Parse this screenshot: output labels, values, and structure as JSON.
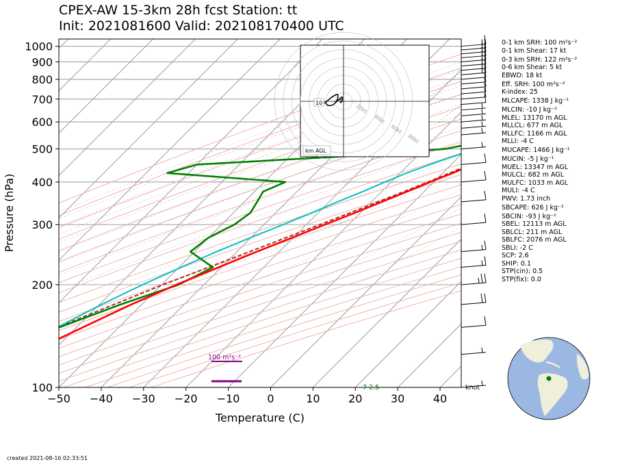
{
  "title_line1": "CPEX-AW 15-3km  28h fcst  Station: tt",
  "title_line2": "Init: 2021081600  Valid: 202108170400 UTC",
  "created": "created 2021-08-16 02:33:51",
  "indices": [
    "0-1 km SRH: 100 m²s⁻²",
    "0-1 km Shear: 17 kt",
    "0-3 km SRH: 122 m²s⁻²",
    "0-6 km Shear: 5 kt",
    "EBWD: 18 kt",
    "Eff. SRH: 100 m²s⁻²",
    "K-index: 25",
    "MLCAPE: 1338 J kg⁻¹",
    "MLCIN: -10 J kg⁻¹",
    "MLEL: 13170 m AGL",
    "MLLCL: 677 m AGL",
    "MLLFC: 1166 m AGL",
    "MLLI: -4 C",
    "MUCAPE: 1466 J kg⁻¹",
    "MUCIN: -5 J kg⁻¹",
    "MUEL: 13347 m AGL",
    "MULCL: 682 m AGL",
    "MULFC: 1033 m AGL",
    "MULI: -4 C",
    "PWV: 1.73 inch",
    "SBCAPE: 626 J kg⁻¹",
    "SBCIN: -93 J kg⁻¹",
    "SBEL: 12113 m AGL",
    "SBLCL: 211 m AGL",
    "SBLFC: 2076 m AGL",
    "SBLI: -2 C",
    "SCP: 2.6",
    "SHIP: 0.1",
    "STP(cin): 0.5",
    "STP(fix): 0.0"
  ],
  "srh_label": "100 m²s⁻²",
  "surface_td_label": "7 2.5",
  "barb_unit": "knot",
  "hodograph": {
    "rings": [
      "20kt",
      "40kt",
      "60kt",
      "80kt"
    ],
    "labels": [
      "10",
      "6"
    ],
    "legend": "km AGL"
  },
  "colors": {
    "temperature": "#ff0000",
    "dewpoint": "#008000",
    "parcel": "#a52a2a",
    "wetbulb": "#00bfbf",
    "srh_bar": "#800080"
  },
  "chart_data": {
    "type": "skew-t",
    "xlabel": "Temperature (C)",
    "ylabel": "Pressure (hPa)",
    "xlim": [
      -50,
      45
    ],
    "ylim": [
      1050,
      100
    ],
    "x_ticks": [
      -50,
      -40,
      -30,
      -20,
      -10,
      0,
      10,
      20,
      30,
      40
    ],
    "y_ticks": [
      1000,
      900,
      800,
      700,
      600,
      500,
      400,
      300,
      200,
      100
    ],
    "series": [
      {
        "key": "temperature",
        "p": [
          1025,
          1000,
          970,
          950,
          925,
          900,
          875,
          850,
          825,
          800,
          775,
          750,
          725,
          700,
          675,
          650,
          625,
          600,
          575,
          550,
          525,
          500,
          475,
          450,
          425,
          400,
          375,
          350,
          325,
          300,
          275,
          250,
          225,
          200,
          175,
          150,
          125,
          100
        ],
        "t": [
          26,
          26.3,
          24.5,
          23.1,
          21.6,
          20.2,
          18.9,
          17.8,
          16.5,
          15.3,
          14.2,
          13.0,
          12.1,
          10.5,
          10.6,
          9.2,
          7.3,
          5.7,
          5.1,
          3.3,
          1.5,
          -0.8,
          -2.5,
          -4.9,
          -7.6,
          -10.8,
          -14.0,
          -17.5,
          -21.3,
          -25.6,
          -30.2,
          -35.3,
          -40.6,
          -46.5,
          -52.5,
          -58.5,
          -65.5,
          -74.0
        ]
      },
      {
        "key": "dewpoint",
        "p": [
          1025,
          1000,
          970,
          950,
          925,
          900,
          875,
          850,
          825,
          800,
          775,
          750,
          725,
          700,
          675,
          650,
          625,
          600,
          575,
          550,
          525,
          500,
          475,
          450,
          425,
          400,
          375,
          350,
          325,
          300,
          275,
          250,
          225,
          200,
          175,
          150,
          125,
          100
        ],
        "td": [
          21.5,
          21.5,
          21.0,
          19.5,
          17.0,
          15.5,
          13.3,
          12.5,
          11.3,
          9.0,
          8.0,
          7.0,
          4.8,
          -2.0,
          1.7,
          -4.5,
          -4.0,
          -6.0,
          -13.5,
          -6.0,
          -8.5,
          -15,
          -38,
          -70,
          -75,
          -45,
          -48,
          -47,
          -46,
          -47,
          -50,
          -51,
          -42,
          -46,
          -55,
          -64,
          -70,
          -74
        ]
      },
      {
        "key": "wetbulb",
        "p": [
          1025,
          1000,
          970,
          950,
          925,
          900,
          875,
          850,
          825,
          800,
          775,
          750,
          725,
          700,
          675,
          650,
          625,
          600,
          575,
          550,
          525,
          500,
          475,
          450,
          425,
          400,
          375,
          350,
          325,
          300,
          275,
          250,
          225,
          200,
          175,
          150,
          125,
          100
        ],
        "tw": [
          22.8,
          22.8,
          22.1,
          21.0,
          19.0,
          17.4,
          15.5,
          14.1,
          12.8,
          11.3,
          10.3,
          8.7,
          6.6,
          3.8,
          3.4,
          1.1,
          -0.4,
          -2.1,
          -3.9,
          -3.0,
          -5.0,
          -7.8,
          -11.5,
          -15.0,
          -18.5,
          -21.5,
          -24.5,
          -28.0,
          -31.5,
          -35.5,
          -40.0,
          -44.8,
          -49.5,
          -54.5,
          -59.5,
          -64.5,
          -70.0,
          -75.5
        ]
      },
      {
        "key": "parcel",
        "p": [
          1000,
          975,
          950,
          925,
          900,
          850,
          800,
          750,
          700,
          650,
          600,
          550,
          500,
          450,
          400,
          350,
          300,
          250,
          200,
          150,
          100
        ],
        "t": [
          27.5,
          25.8,
          24.3,
          23.2,
          22.0,
          19.9,
          17.8,
          15.4,
          12.9,
          10.2,
          7.1,
          3.6,
          -0.6,
          -5.5,
          -11.3,
          -18.4,
          -26.8,
          -37.0,
          -49.7,
          -64.5,
          -83.5
        ]
      }
    ],
    "wind_barbs": [
      {
        "p": 1000,
        "kt": 15
      },
      {
        "p": 975,
        "kt": 15
      },
      {
        "p": 950,
        "kt": 15
      },
      {
        "p": 925,
        "kt": 15
      },
      {
        "p": 900,
        "kt": 15
      },
      {
        "p": 875,
        "kt": 15
      },
      {
        "p": 850,
        "kt": 15
      },
      {
        "p": 825,
        "kt": 15
      },
      {
        "p": 800,
        "kt": 10
      },
      {
        "p": 775,
        "kt": 10
      },
      {
        "p": 750,
        "kt": 10
      },
      {
        "p": 725,
        "kt": 10
      },
      {
        "p": 700,
        "kt": 10
      },
      {
        "p": 675,
        "kt": 10
      },
      {
        "p": 650,
        "kt": 5
      },
      {
        "p": 625,
        "kt": 5
      },
      {
        "p": 600,
        "kt": 5
      },
      {
        "p": 575,
        "kt": 5
      },
      {
        "p": 550,
        "kt": 5
      },
      {
        "p": 500,
        "kt": 5
      },
      {
        "p": 450,
        "kt": 10
      },
      {
        "p": 400,
        "kt": 10
      },
      {
        "p": 350,
        "kt": 10
      },
      {
        "p": 300,
        "kt": 10
      },
      {
        "p": 250,
        "kt": 15
      },
      {
        "p": 225,
        "kt": 15
      },
      {
        "p": 200,
        "kt": 25
      },
      {
        "p": 175,
        "kt": 20
      },
      {
        "p": 150,
        "kt": 10
      },
      {
        "p": 125,
        "kt": 5
      },
      {
        "p": 100,
        "kt": 5
      }
    ]
  }
}
